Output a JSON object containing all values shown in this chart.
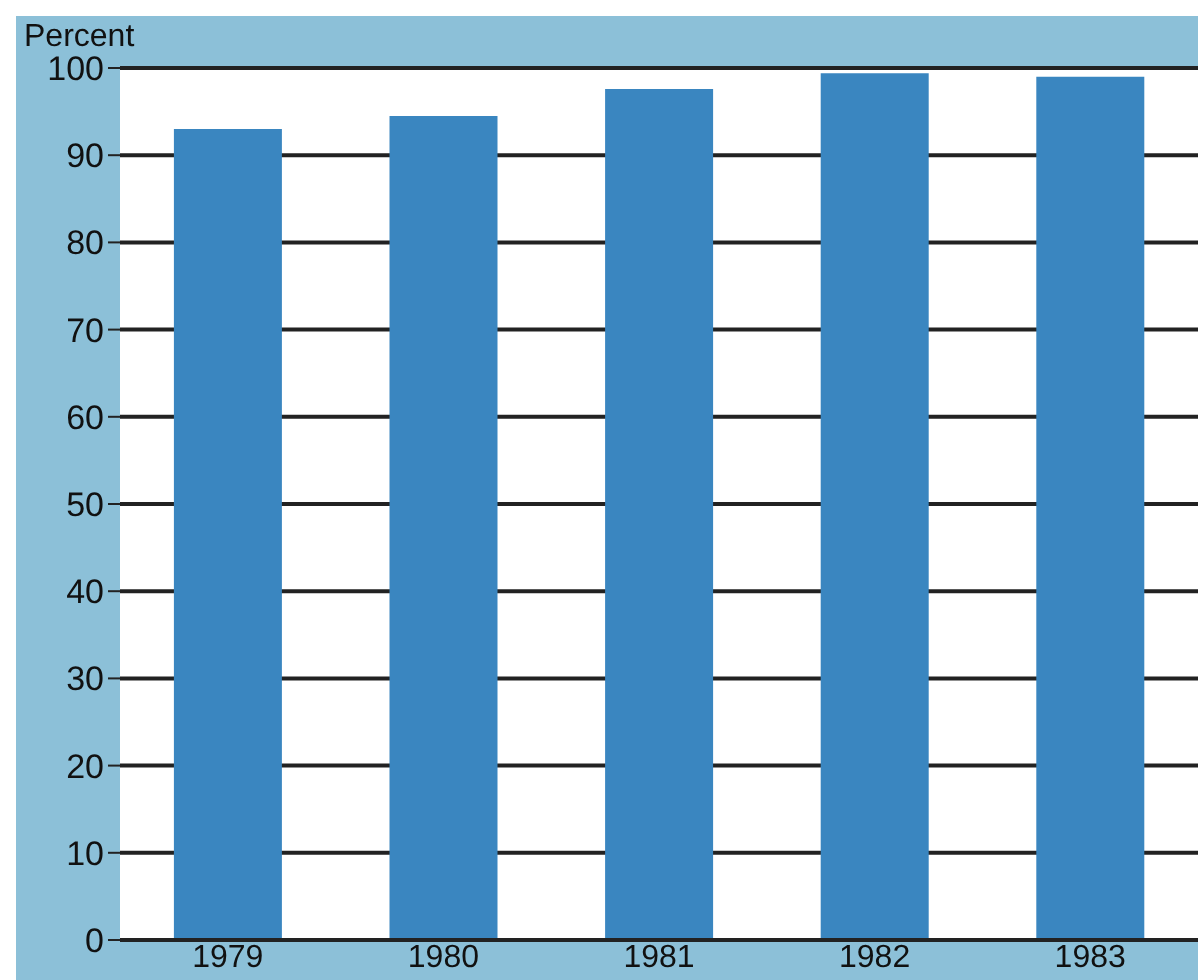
{
  "chart_data": {
    "type": "bar",
    "ylabel": "Percent",
    "categories": [
      "1979",
      "1980",
      "1981",
      "1982",
      "1983"
    ],
    "values": [
      93,
      94.5,
      97.6,
      99.4,
      99
    ],
    "color": "#3a86c0",
    "ylim": [
      0,
      100
    ],
    "yticks": [
      0,
      10,
      20,
      30,
      40,
      50,
      60,
      70,
      80,
      90,
      100
    ],
    "grid": "y"
  }
}
